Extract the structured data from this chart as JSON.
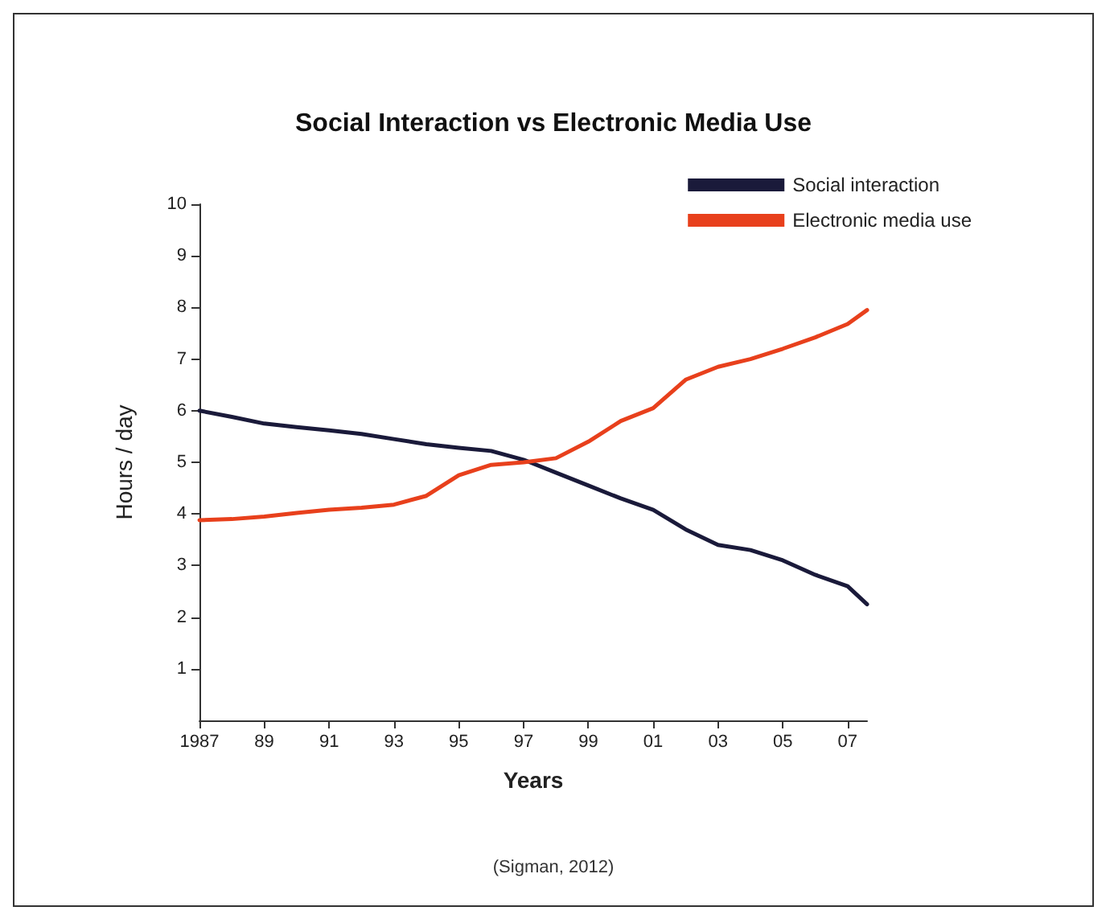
{
  "chart_data": {
    "type": "line",
    "title": "Social Interaction vs Electronic Media Use",
    "xlabel": "Years",
    "ylabel": "Hours / day",
    "annotations": [
      "(Sigman, 2012)"
    ],
    "x": [
      1987,
      1988,
      1989,
      1990,
      1991,
      1992,
      1993,
      1994,
      1995,
      1996,
      1997,
      1998,
      1999,
      2000,
      2001,
      2002,
      2003,
      2004,
      2005,
      2006,
      2007,
      2007.6
    ],
    "series": [
      {
        "name": "Social interaction",
        "color": "#1a1a3a",
        "values": [
          6.0,
          5.88,
          5.75,
          5.68,
          5.62,
          5.55,
          5.45,
          5.35,
          5.28,
          5.22,
          5.05,
          4.8,
          4.55,
          4.3,
          4.08,
          3.7,
          3.4,
          3.3,
          3.1,
          2.82,
          2.6,
          2.25
        ]
      },
      {
        "name": "Electronic media use",
        "color": "#e8401c",
        "values": [
          3.88,
          3.9,
          3.95,
          4.02,
          4.08,
          4.12,
          4.18,
          4.35,
          4.75,
          4.95,
          5.0,
          5.08,
          5.4,
          5.8,
          6.05,
          6.6,
          6.85,
          7.0,
          7.2,
          7.42,
          7.68,
          7.95
        ]
      }
    ],
    "xlim": [
      1987,
      2007.6
    ],
    "xticks": [
      {
        "value": 1987,
        "label": "1987"
      },
      {
        "value": 1989,
        "label": "89"
      },
      {
        "value": 1991,
        "label": "91"
      },
      {
        "value": 1993,
        "label": "93"
      },
      {
        "value": 1995,
        "label": "95"
      },
      {
        "value": 1997,
        "label": "97"
      },
      {
        "value": 1999,
        "label": "99"
      },
      {
        "value": 2001,
        "label": "01"
      },
      {
        "value": 2003,
        "label": "03"
      },
      {
        "value": 2005,
        "label": "05"
      },
      {
        "value": 2007,
        "label": "07"
      }
    ],
    "ylim": [
      0,
      10
    ],
    "yticks": [
      1,
      2,
      3,
      4,
      5,
      6,
      7,
      8,
      9,
      10
    ],
    "grid": false,
    "legend": "top right",
    "marker": "none",
    "line_style": "solid"
  }
}
